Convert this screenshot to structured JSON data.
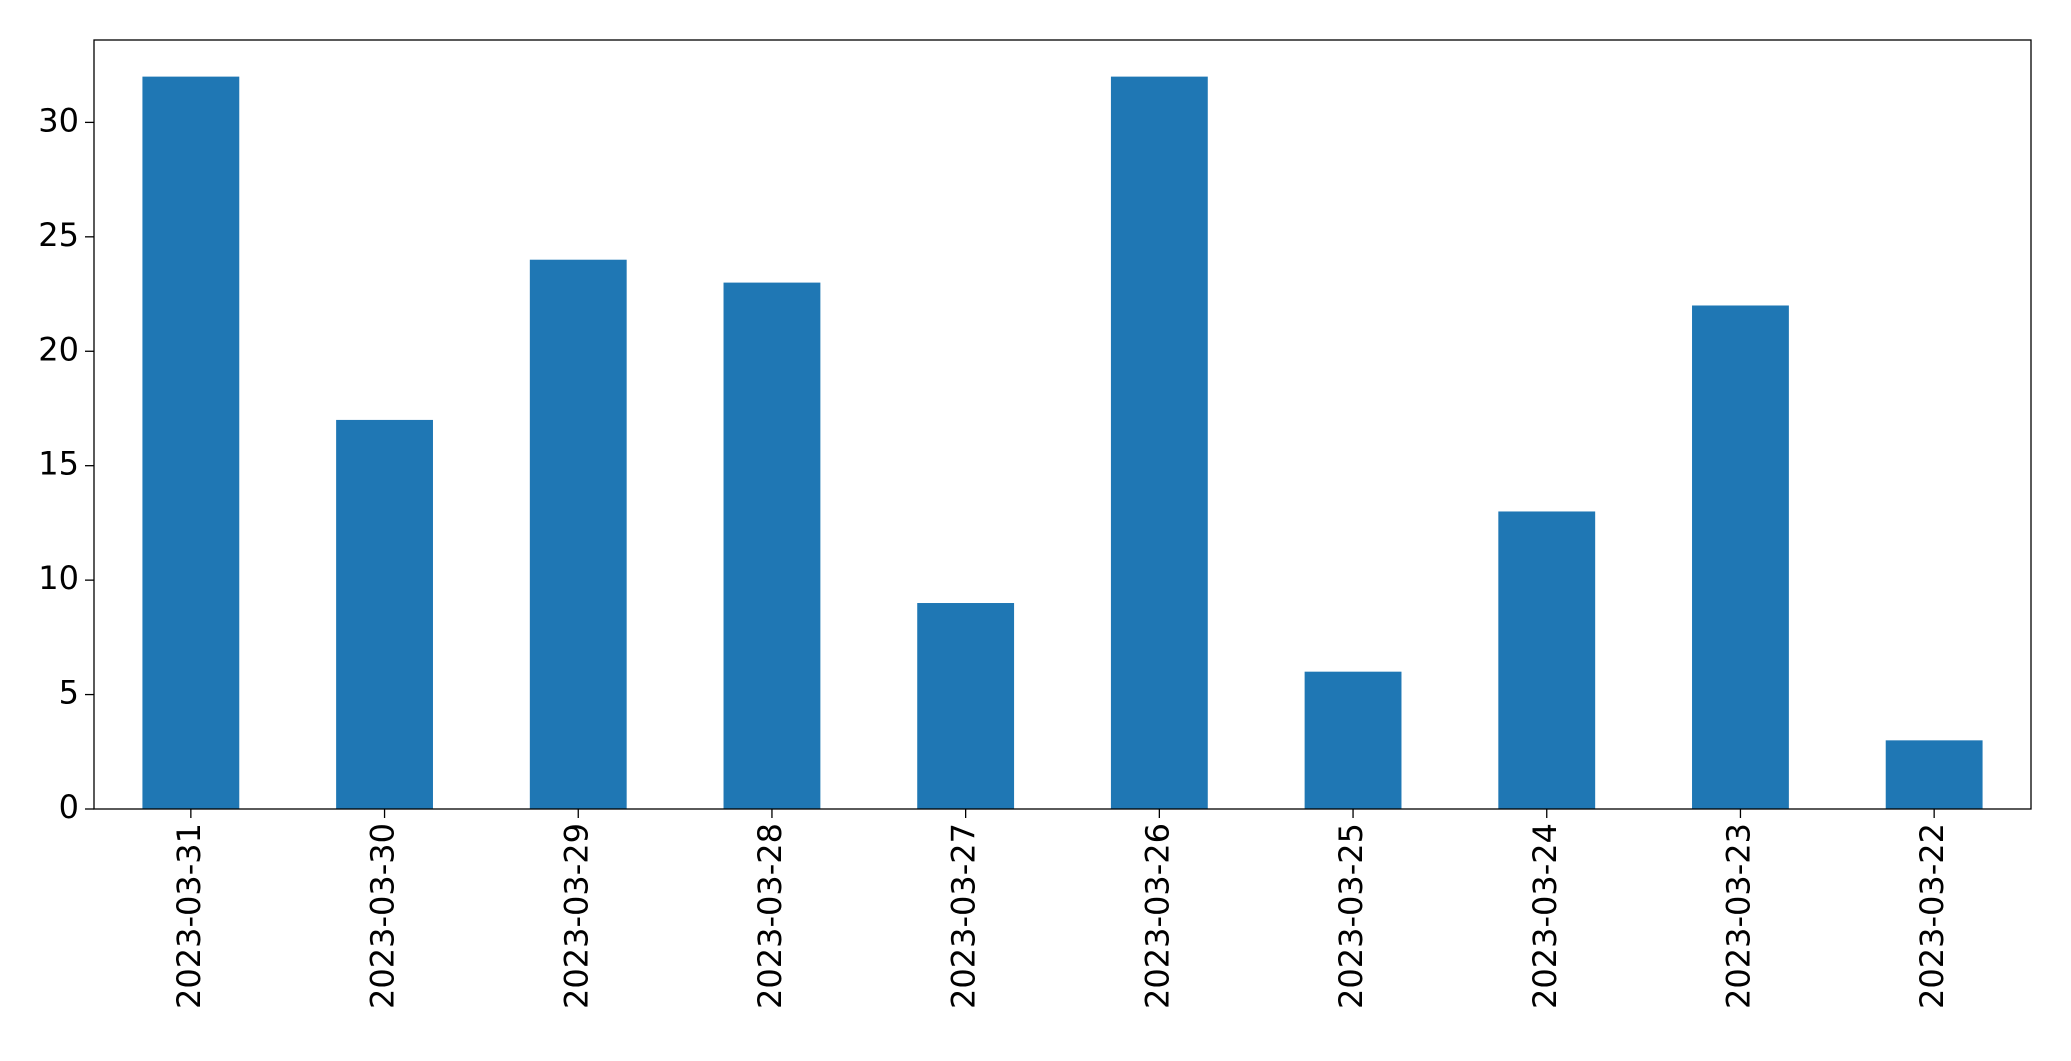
{
  "chart_data": {
    "type": "bar",
    "categories": [
      "2023-03-31",
      "2023-03-30",
      "2023-03-29",
      "2023-03-28",
      "2023-03-27",
      "2023-03-26",
      "2023-03-25",
      "2023-03-24",
      "2023-03-23",
      "2023-03-22"
    ],
    "values": [
      32,
      17,
      24,
      23,
      9,
      32,
      6,
      13,
      22,
      3
    ],
    "color": "#1f77b4",
    "ylim": [
      0,
      33.6
    ],
    "yticks": [
      0,
      5,
      10,
      15,
      20,
      25,
      30
    ],
    "grid": false
  }
}
